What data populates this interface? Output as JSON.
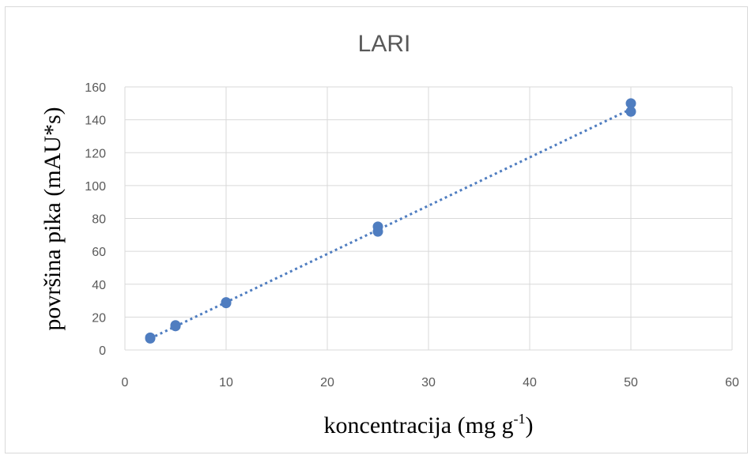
{
  "chart_data": {
    "type": "scatter",
    "title": "LARI",
    "xlabel": "koncentracija (mg g",
    "xlabel_superscript": "-1",
    "xlabel_suffix": ")",
    "ylabel": "površina pika (mAU*s)",
    "xlim": [
      0,
      60
    ],
    "ylim": [
      0,
      160
    ],
    "xticks": [
      0,
      10,
      20,
      30,
      40,
      50,
      60
    ],
    "yticks": [
      0,
      20,
      40,
      60,
      80,
      100,
      120,
      140,
      160
    ],
    "grid": true,
    "legend": "none",
    "marker_color": "#4F7DC0",
    "trendline": {
      "type": "linear",
      "style": "dotted",
      "color": "#4F7DC0",
      "x": [
        2.5,
        50
      ],
      "y": [
        7,
        146.5
      ]
    },
    "points": [
      {
        "x": 2.5,
        "y": 7.5
      },
      {
        "x": 2.5,
        "y": 7
      },
      {
        "x": 5,
        "y": 14.5
      },
      {
        "x": 5,
        "y": 15
      },
      {
        "x": 10,
        "y": 28.5
      },
      {
        "x": 10,
        "y": 29
      },
      {
        "x": 25,
        "y": 75
      },
      {
        "x": 25,
        "y": 72
      },
      {
        "x": 50,
        "y": 150
      },
      {
        "x": 50,
        "y": 145
      }
    ]
  }
}
